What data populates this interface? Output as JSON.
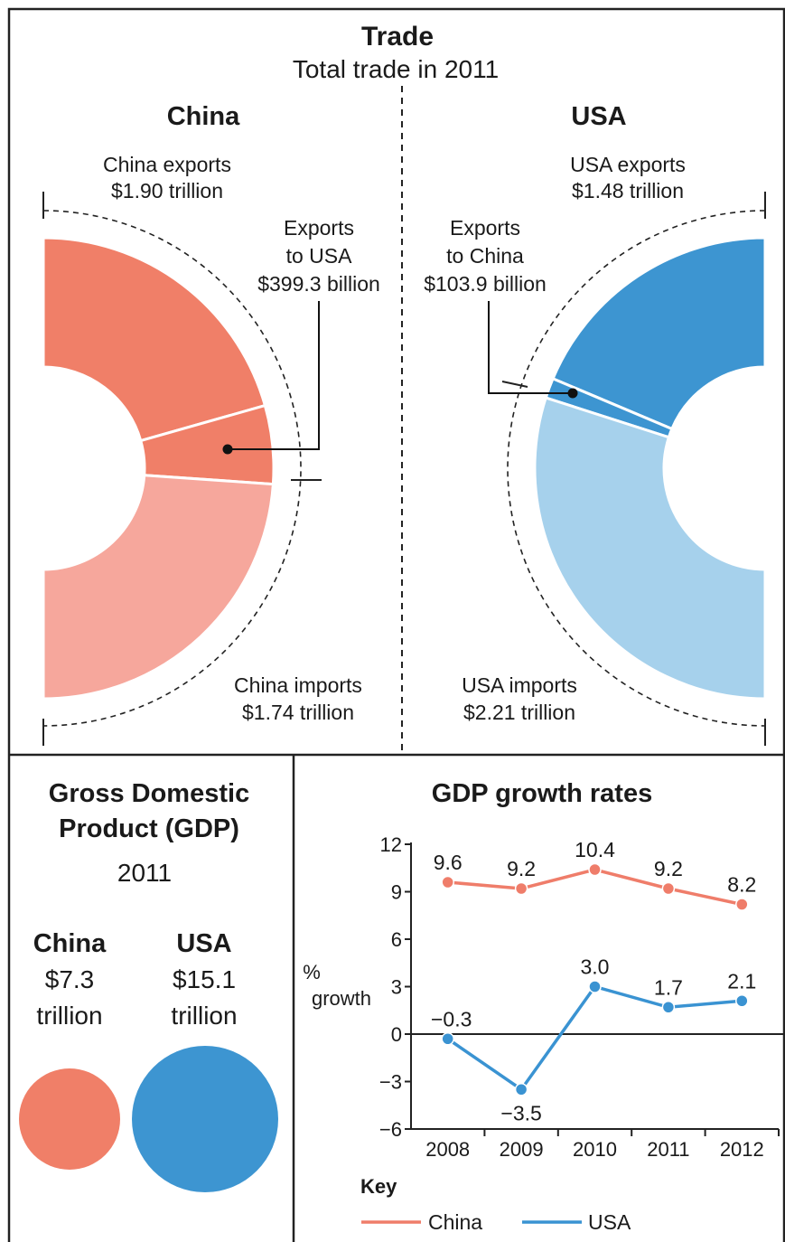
{
  "trade": {
    "title": "Trade",
    "subtitle": "Total trade in 2011",
    "china": {
      "name": "China",
      "exports_label": "China exports",
      "exports_value": "$1.90 trillion",
      "exports_trillion": 1.9,
      "imports_label": "China imports",
      "imports_value": "$1.74 trillion",
      "imports_trillion": 1.74,
      "bilateral_line1": "Exports",
      "bilateral_line2": "to USA",
      "bilateral_value": "$399.3 billion",
      "bilateral_billion": 399.3
    },
    "usa": {
      "name": "USA",
      "exports_label": "USA exports",
      "exports_value": "$1.48 trillion",
      "exports_trillion": 1.48,
      "imports_label": "USA imports",
      "imports_value": "$2.21 trillion",
      "imports_trillion": 2.21,
      "bilateral_line1": "Exports",
      "bilateral_line2": "to China",
      "bilateral_value": "$103.9 billion",
      "bilateral_billion": 103.9
    }
  },
  "gdp": {
    "title_line1": "Gross Domestic",
    "title_line2": "Product (GDP)",
    "year": "2011",
    "china": {
      "name": "China",
      "value_line1": "$7.3",
      "value_line2": "trillion",
      "value_trillion": 7.3
    },
    "usa": {
      "name": "USA",
      "value_line1": "$15.1",
      "value_line2": "trillion",
      "value_trillion": 15.1
    }
  },
  "colors": {
    "china_dark": "#f07f68",
    "china_light": "#f6a79c",
    "usa_dark": "#3d95d1",
    "usa_light": "#a6d1ec",
    "china_line": "#ef7d6a",
    "usa_line": "#3a93d2"
  },
  "chart_data": {
    "type": "line",
    "title": "GDP growth rates",
    "ylabel_line1": "%",
    "ylabel_line2": "growth",
    "x": [
      "2008",
      "2009",
      "2010",
      "2011",
      "2012"
    ],
    "ylim": [
      -6,
      12
    ],
    "yticks": [
      "12",
      "9",
      "6",
      "3",
      "0",
      "−3",
      "−6"
    ],
    "ytick_values": [
      12,
      9,
      6,
      3,
      0,
      -3,
      -6
    ],
    "series": [
      {
        "name": "China",
        "values": [
          9.6,
          9.2,
          10.4,
          9.2,
          8.2
        ],
        "labels": [
          "9.6",
          "9.2",
          "10.4",
          "9.2",
          "8.2"
        ]
      },
      {
        "name": "USA",
        "values": [
          -0.3,
          -3.5,
          3.0,
          1.7,
          2.1
        ],
        "labels": [
          "−0.3",
          "−3.5",
          "3.0",
          "1.7",
          "2.1"
        ]
      }
    ],
    "key_title": "Key",
    "legend": "bottom"
  }
}
